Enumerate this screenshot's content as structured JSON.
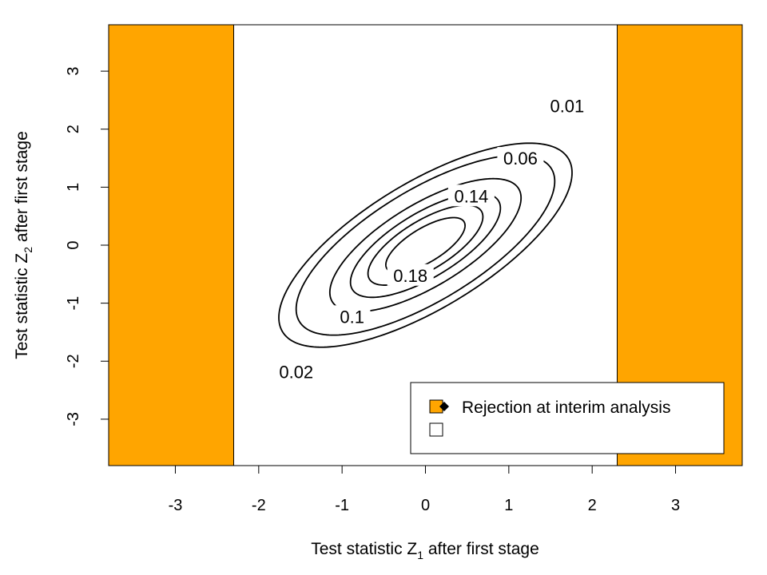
{
  "chart_data": {
    "type": "contour",
    "title": "",
    "xlabel": "Test statistic Z",
    "xlabel_sub": "1",
    "xlabel_rest": " after first stage",
    "ylabel": "Test statistic Z",
    "ylabel_sub": "2",
    "ylabel_rest": " after first stage",
    "xlim": [
      -3.8,
      3.8
    ],
    "ylim": [
      -3.8,
      3.8
    ],
    "xticks": [
      -3,
      -2,
      -1,
      0,
      1,
      2,
      3
    ],
    "yticks": [
      -3,
      -2,
      -1,
      0,
      1,
      2,
      3
    ],
    "xtick_labels": [
      "-3",
      "-2",
      "-1",
      "0",
      "1",
      "2",
      "3"
    ],
    "ytick_labels": [
      "-3",
      "-2",
      "-1",
      "0",
      "1",
      "2",
      "3"
    ],
    "rejection_regions": [
      {
        "x_from": -3.8,
        "x_to": -2.3
      },
      {
        "x_from": 2.3,
        "x_to": 3.8
      }
    ],
    "rejection_color": "#FFA500",
    "distribution": {
      "mean_x": 0,
      "mean_y": 0,
      "sd_x": 1,
      "sd_y": 1,
      "correlation": 0.71
    },
    "contour_levels": [
      0.01,
      0.02,
      0.06,
      0.1,
      0.14,
      0.18
    ],
    "contour_labels": [
      {
        "level": 0.01,
        "text": "0.01",
        "x": 1.7,
        "y": 2.4
      },
      {
        "level": 0.06,
        "text": "0.06",
        "x": 1.14,
        "y": 1.5
      },
      {
        "level": 0.14,
        "text": "0.14",
        "x": 0.55,
        "y": 0.85
      },
      {
        "level": 0.18,
        "text": "0.18",
        "x": -0.18,
        "y": -0.52
      },
      {
        "level": 0.1,
        "text": "0.1",
        "x": -0.88,
        "y": -1.23
      },
      {
        "level": 0.02,
        "text": "0.02",
        "x": -1.55,
        "y": -2.18
      }
    ],
    "legend": {
      "placement": "bottom-right",
      "entries": [
        {
          "label": "Rejection at interim analysis",
          "fill": "#FFA500"
        },
        {
          "label": "",
          "fill": "#FFFFFF"
        }
      ]
    }
  }
}
